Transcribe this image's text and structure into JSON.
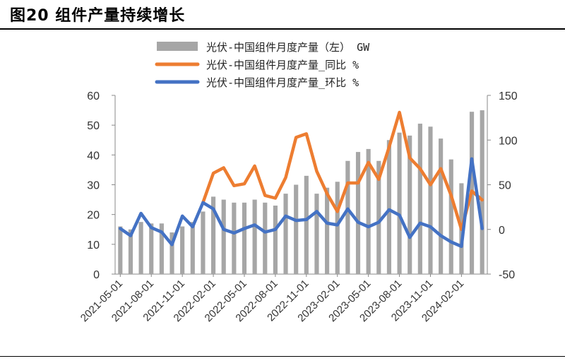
{
  "figure": {
    "title": "图20 组件产量持续增长"
  },
  "chart_data": {
    "type": "bar+line",
    "categories": [
      "2021-05",
      "2021-06",
      "2021-07",
      "2021-08",
      "2021-09",
      "2021-10",
      "2021-11",
      "2021-12",
      "2022-01",
      "2022-02",
      "2022-03",
      "2022-04",
      "2022-05",
      "2022-06",
      "2022-07",
      "2022-08",
      "2022-09",
      "2022-10",
      "2022-11",
      "2022-12",
      "2023-01",
      "2023-02",
      "2023-03",
      "2023-04",
      "2023-05",
      "2023-06",
      "2023-07",
      "2023-08",
      "2023-09",
      "2023-10",
      "2023-11",
      "2023-12",
      "2024-01",
      "2024-02",
      "2024-03",
      "2024-04"
    ],
    "x_tick_labels": [
      "2021-05-01",
      "2021-08-01",
      "2021-11-01",
      "2022-02-01",
      "2022-05-01",
      "2022-08-01",
      "2022-11-01",
      "2023-02-01",
      "2023-05-01",
      "2023-08-01",
      "2023-11-01",
      "2024-02-01"
    ],
    "y_left": {
      "range": [
        0,
        60
      ],
      "ticks": [
        0,
        10,
        20,
        30,
        40,
        50,
        60
      ]
    },
    "y_right": {
      "range": [
        -50,
        150
      ],
      "ticks": [
        -50,
        0,
        50,
        100,
        150
      ]
    },
    "legend_position": "top-center",
    "series": [
      {
        "name": "光伏-中国组件月度产量（左） GW",
        "kind": "bar",
        "axis": "left",
        "color": "#a6a6a6",
        "values": [
          16,
          15,
          17.5,
          17,
          17,
          14,
          16,
          17.5,
          21,
          26,
          25,
          24,
          24,
          25,
          24,
          23,
          27,
          30,
          33,
          27,
          29,
          31,
          38,
          41,
          42,
          38,
          45,
          47.5,
          46.5,
          50.5,
          49.5,
          45.5,
          38.5,
          30.5,
          54.5,
          55
        ]
      },
      {
        "name": "光伏-中国组件月度产量_同比 %",
        "kind": "line",
        "axis": "right",
        "color": "#ed7d31",
        "values": [
          null,
          null,
          null,
          null,
          null,
          null,
          null,
          null,
          30,
          63,
          69,
          49,
          51,
          71,
          38,
          35,
          58,
          103,
          107,
          65,
          40,
          20,
          52,
          52,
          75,
          56,
          92,
          131,
          80,
          68,
          50,
          68,
          38,
          0,
          43,
          33
        ]
      },
      {
        "name": "光伏-中国组件月度产量_环比 %",
        "kind": "line",
        "axis": "right",
        "color": "#4472c4",
        "values": [
          1,
          -7,
          18,
          2,
          -3,
          -17,
          15,
          3,
          30,
          23,
          0,
          -4,
          1,
          5,
          -3,
          0,
          15,
          10,
          11,
          20,
          7,
          5,
          23,
          8,
          3,
          8,
          22,
          16,
          -9,
          7,
          3,
          -7,
          -14,
          -19,
          79,
          1
        ]
      }
    ]
  }
}
